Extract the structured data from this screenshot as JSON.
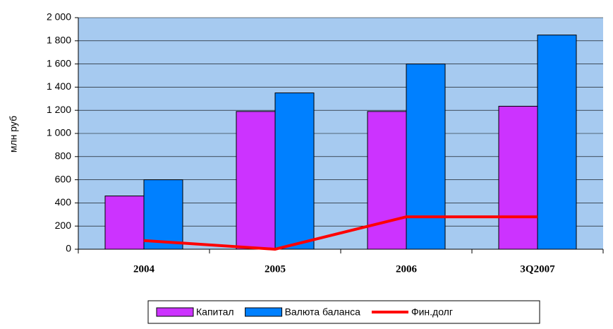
{
  "chart_data": {
    "type": "bar",
    "y_label": "млн руб",
    "categories": [
      "2004",
      "2005",
      "2006",
      "3Q2007"
    ],
    "series": [
      {
        "name": "Капитал",
        "color": "#cc33ff",
        "values": [
          460,
          1190,
          1190,
          1235
        ]
      },
      {
        "name": "Валюта баланса",
        "color": "#0080ff",
        "values": [
          600,
          1350,
          1600,
          1850
        ]
      },
      {
        "name": "Фин.долг",
        "color": "#ff0000",
        "type": "line",
        "values": [
          75,
          0,
          280,
          280
        ]
      }
    ],
    "ylim": [
      0,
      2000
    ],
    "yticks": [
      0,
      200,
      400,
      600,
      800,
      {
        "value": 1000,
        "label": "1 000"
      },
      {
        "value": 1200,
        "label": "1 200"
      },
      {
        "value": 1400,
        "label": "1 400"
      },
      {
        "value": 1600,
        "label": "1 600"
      },
      {
        "value": 1800,
        "label": "1 800"
      },
      {
        "value": 2000,
        "label": "2 000"
      }
    ],
    "grid": true,
    "plot_background": "#a6caf0",
    "legend": "bottom"
  }
}
